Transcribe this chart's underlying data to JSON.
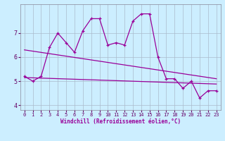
{
  "x": [
    0,
    1,
    2,
    3,
    4,
    5,
    6,
    7,
    8,
    9,
    10,
    11,
    12,
    13,
    14,
    15,
    16,
    17,
    18,
    19,
    20,
    21,
    22,
    23
  ],
  "line_jagged": [
    5.2,
    5.0,
    5.2,
    6.4,
    7.0,
    6.6,
    6.2,
    7.1,
    7.6,
    7.6,
    6.5,
    6.6,
    6.5,
    7.5,
    7.8,
    7.8,
    6.0,
    5.1,
    5.1,
    4.7,
    5.0,
    4.3,
    4.6,
    4.6
  ],
  "trend1_x": [
    0,
    23
  ],
  "trend1_y": [
    6.3,
    5.1
  ],
  "trend2_x": [
    0,
    23
  ],
  "trend2_y": [
    5.15,
    4.88
  ],
  "background_color": "#cceeff",
  "grid_color": "#aabbcc",
  "line_color": "#990099",
  "ylim": [
    3.8,
    8.2
  ],
  "xlim": [
    -0.5,
    23.5
  ],
  "xlabel": "Windchill (Refroidissement éolien,°C)",
  "yticks": [
    4,
    5,
    6,
    7
  ],
  "xticks": [
    0,
    1,
    2,
    3,
    4,
    5,
    6,
    7,
    8,
    9,
    10,
    11,
    12,
    13,
    14,
    15,
    16,
    17,
    18,
    19,
    20,
    21,
    22,
    23
  ]
}
